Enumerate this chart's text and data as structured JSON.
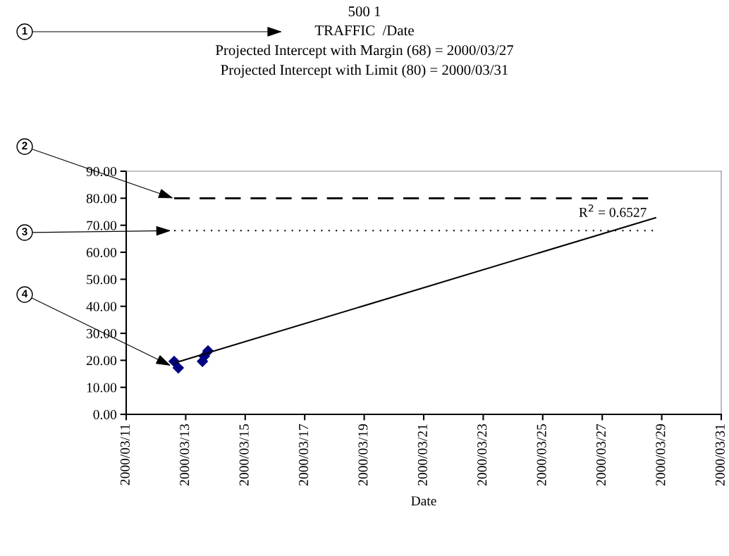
{
  "chart_data": {
    "type": "scatter",
    "title": "500 1",
    "subtitle": "TRAFFIC  /Date",
    "xlabel": "Date",
    "x": [
      "2000-03-12T14:40",
      "2000-03-12T18:00",
      "2000-03-13T13:30",
      "2000-03-13T15:00",
      "2000-03-13T18:00"
    ],
    "series": [
      {
        "color": "#000080",
        "marker": "diamond",
        "values": [
          19.6,
          17.2,
          19.6,
          21.5,
          23.5
        ]
      },
      {
        "type": "line",
        "color": "#000000",
        "marker": "none",
        "line_style": "solid",
        "x": [
          "2000-03-12T14:40",
          "2000-03-28T19:00"
        ],
        "values": [
          19,
          72.8
        ]
      }
    ],
    "xlim": [
      "2000-03-11",
      "2000-03-31"
    ],
    "xticks": [
      {
        "value": "2000-03-11",
        "label": "2000/03/11"
      },
      {
        "value": "2000-03-13",
        "label": "2000/03/13"
      },
      {
        "value": "2000-03-15",
        "label": "2000/03/15"
      },
      {
        "value": "2000-03-17",
        "label": "2000/03/17"
      },
      {
        "value": "2000-03-19",
        "label": "2000/03/19"
      },
      {
        "value": "2000-03-21",
        "label": "2000/03/21"
      },
      {
        "value": "2000-03-23",
        "label": "2000/03/23"
      },
      {
        "value": "2000-03-25",
        "label": "2000/03/25"
      },
      {
        "value": "2000-03-27",
        "label": "2000/03/27"
      },
      {
        "value": "2000-03-29",
        "label": "2000/03/29"
      },
      {
        "value": "2000-03-31",
        "label": "2000/03/31"
      }
    ],
    "ylim": [
      0,
      90
    ],
    "yticks": [
      {
        "value": 0,
        "label": "0.00"
      },
      {
        "value": 10,
        "label": "10.00"
      },
      {
        "value": 20,
        "label": "20.00"
      },
      {
        "value": 30,
        "label": "30.00"
      },
      {
        "value": 40,
        "label": "40.00"
      },
      {
        "value": 50,
        "label": "50.00"
      },
      {
        "value": 60,
        "label": "60.00"
      },
      {
        "value": 70,
        "label": "70.00"
      },
      {
        "value": 80,
        "label": "80.00"
      },
      {
        "value": 90,
        "label": "90.00"
      }
    ],
    "ref_lines": [
      {
        "axis": "y",
        "value": 80,
        "color": "#000000",
        "line_style": "dashed"
      },
      {
        "axis": "y",
        "value": 68,
        "color": "#000000",
        "line_style": "dotted"
      }
    ],
    "annotations": [
      "Projected Intercept with Margin (68) = 2000/03/27",
      "Projected Intercept with Limit (80) = 2000/03/31",
      "1",
      {
        "text": "2",
        "x": "2000-03-12T14:00",
        "y": 80
      },
      {
        "text": "3",
        "x": "2000-03-12T12:00",
        "y": 68
      },
      {
        "text": "4",
        "x": "2000-03-12T12:00",
        "y": 18
      },
      {
        "text": "R$^{2}$ = 0.6527",
        "x": "2000-03-28T12:00",
        "y": 72
      }
    ],
    "grid": false,
    "legend": false
  }
}
